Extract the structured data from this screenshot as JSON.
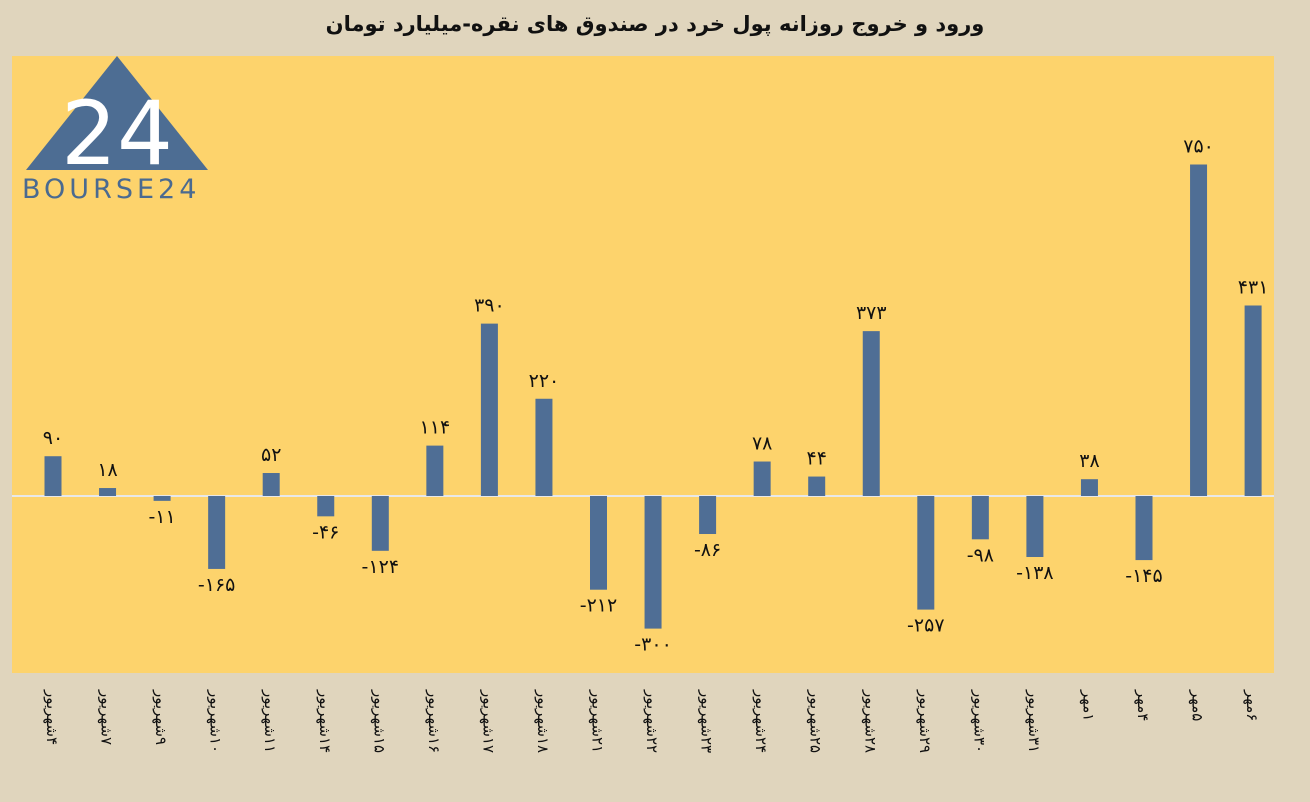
{
  "chart_data": {
    "type": "bar",
    "title": "ورود و خروج روزانه پول خرد در صندوق های نقره-میلیارد تومان",
    "categories": [
      "۴شهریور",
      "۷شهریور",
      "۹شهریور",
      "۱۰شهریور",
      "۱۱شهریور",
      "۱۴شهریور",
      "۱۵شهریور",
      "۱۶شهریور",
      "۱۷شهریور",
      "۱۸شهریور",
      "۲۱شهریور",
      "۲۲شهریور",
      "۲۳شهریور",
      "۲۴شهریور",
      "۲۵شهریور",
      "۲۸شهریور",
      "۲۹شهریور",
      "۳۰شهریور",
      "۳۱شهریور",
      "۱مهر",
      "۴مهر",
      "۵مهر",
      "۶مهر"
    ],
    "values": [
      90,
      18,
      -11,
      -165,
      52,
      -46,
      -124,
      114,
      390,
      220,
      -212,
      -300,
      -86,
      78,
      44,
      373,
      -257,
      -98,
      -138,
      38,
      -145,
      750,
      431
    ],
    "value_labels": [
      "۹۰",
      "۱۸",
      "-۱۱",
      "-۱۶۵",
      "۵۲",
      "-۴۶",
      "-۱۲۴",
      "۱۱۴",
      "۳۹۰",
      "۲۲۰",
      "-۲۱۲",
      "-۳۰۰",
      "-۸۶",
      "۷۸",
      "۴۴",
      "۳۷۳",
      "-۲۵۷",
      "-۹۸",
      "-۱۳۸",
      "۳۸",
      "-۱۴۵",
      "۷۵۰",
      "۴۳۱"
    ],
    "xlabel": "",
    "ylabel": "",
    "ylim": [
      -350,
      850
    ],
    "grid": false,
    "legend": "none",
    "colors": {
      "bar": "#4f6e95",
      "plot_bg": "#fdd36c",
      "page_bg": "#e0d5bd",
      "axis": "#e8e8e8"
    }
  },
  "logo": {
    "text": "BOURSE24",
    "mark": "24"
  }
}
